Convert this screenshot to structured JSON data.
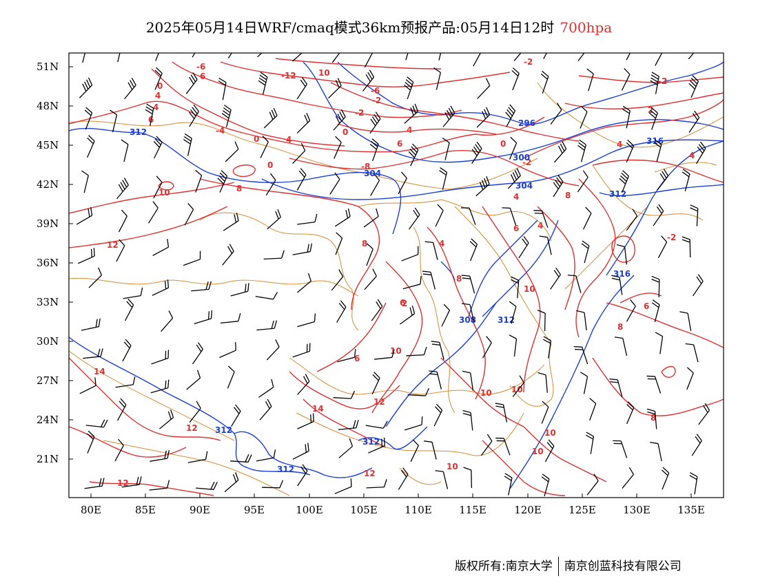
{
  "title": {
    "main": "2025年05月14日WRF/cmaq模式36km预报产品:05月14日12时",
    "level": "700hpa"
  },
  "footer": {
    "left": "版权所有:南京大学",
    "right": "南京创蓝科技有限公司"
  },
  "axes": {
    "lat_labels": [
      "51N",
      "48N",
      "45N",
      "42N",
      "39N",
      "36N",
      "33N",
      "30N",
      "27N",
      "24N",
      "21N"
    ],
    "lon_labels": [
      "80E",
      "85E",
      "90E",
      "95E",
      "100E",
      "105E",
      "110E",
      "115E",
      "120E",
      "125E",
      "130E",
      "135E"
    ]
  },
  "colors": {
    "temperature": "#e03030",
    "height": "#1a3fd8",
    "boundary": "#d98a30",
    "wind": "#000000"
  },
  "contour_labels": {
    "temperature": [
      "-2",
      "-2",
      "2",
      "-2",
      "0",
      "-6",
      "4",
      "0",
      "-12",
      "10",
      "-6",
      "-2",
      "-2",
      "0",
      "4",
      "6",
      "4",
      "-4",
      "2",
      "0",
      "6",
      "-8",
      "6",
      "0",
      "-2",
      "4",
      "-6",
      "4",
      "4",
      "4",
      "-2",
      "8",
      "10",
      "12",
      "6",
      "8",
      "4",
      "6",
      "8",
      "4",
      "10",
      "6",
      "8",
      "6",
      "8",
      "10",
      "10",
      "14",
      "12",
      "10",
      "12",
      "14",
      "12",
      "12",
      "10",
      "10",
      "8",
      "12"
    ],
    "height": [
      "312",
      "304",
      "296",
      "300",
      "304",
      "312",
      "308",
      "316",
      "308",
      "312",
      "312",
      "312",
      "312"
    ]
  },
  "icons": [
    "wind-barb-icon"
  ]
}
